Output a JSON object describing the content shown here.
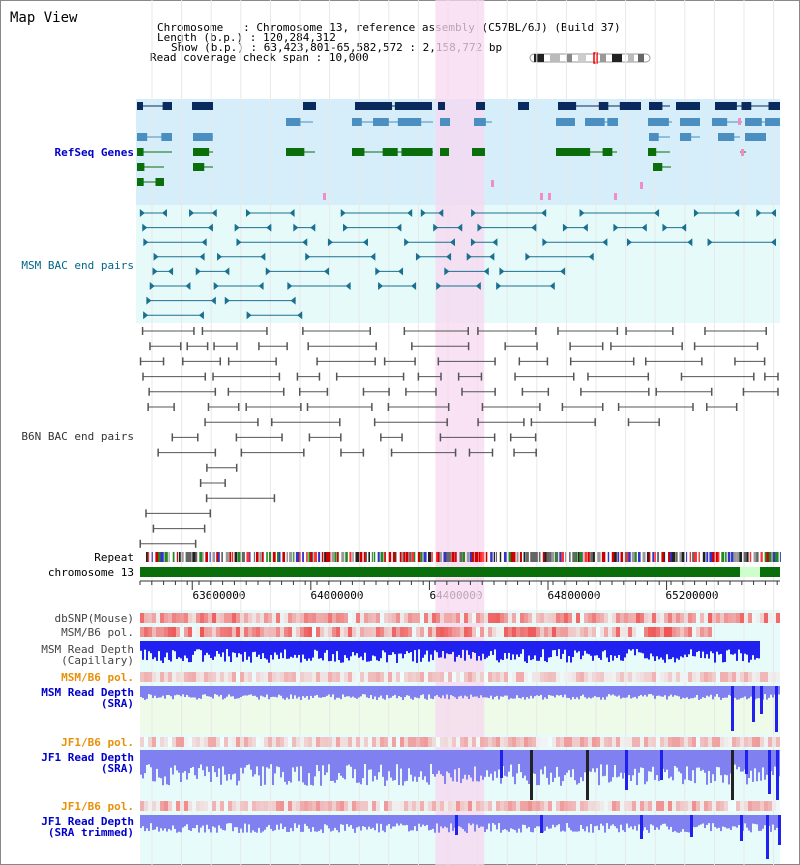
{
  "view": {
    "title": "Map View",
    "chromosome_label": "Chromosome",
    "chromosome_value": "Chromosome 13, reference assembly (C57BL/6J) (Build 37)",
    "length_label": "Length (b.p.)",
    "length_value": "120,284,312",
    "show_label": "Show (b.p.)",
    "show_value": "63,423,801-65,582,572 : 2,158,772 bp",
    "span_label": "Read coverage check span",
    "span_value": "10,000"
  },
  "tracks": {
    "refseq": "RefSeq Genes",
    "msm_bac": "MSM BAC end pairs",
    "b6n_bac": "B6N BAC end pairs",
    "repeat": "Repeat",
    "chromosome": "chromosome 13",
    "dbsnp": "dbSNP(Mouse)",
    "msm_b6_pol_1": "MSM/B6 pol.",
    "msm_depth_cap_1": "MSM Read Depth",
    "msm_depth_cap_2": "(Capillary)",
    "msm_b6_pol_2": "MSM/B6 pol.",
    "msm_depth_sra_1": "MSM Read Depth",
    "msm_depth_sra_2": "(SRA)",
    "jf1_b6_pol_1": "JF1/B6 pol.",
    "jf1_depth_sra_1": "JF1 Read Depth",
    "jf1_depth_sra_2": "(SRA)",
    "jf1_b6_pol_2": "JF1/B6 pol.",
    "jf1_depth_trim_1": "JF1 Read Depth",
    "jf1_depth_trim_2": "(SRA trimmed)"
  },
  "axis": {
    "ticks": [
      "63600000",
      "64000000",
      "64400000",
      "64800000",
      "65200000"
    ],
    "tick_values": [
      63600000,
      64000000,
      64400000,
      64800000,
      65200000
    ],
    "start": 63423801,
    "end": 65582572,
    "highlight_start": 64420000,
    "highlight_end": 64585000
  },
  "colors": {
    "refseq_bg": "#d6eefa",
    "bac_bg": "#e6fafa",
    "highlight": "#f7d8f0",
    "refseq_navy": "#0a2a5e",
    "refseq_blue": "#4a8fbf",
    "refseq_green": "#0a6e0a",
    "refseq_pink": "#f08cc8",
    "msm_bac": "#1a7090",
    "b6n_bac": "#555555",
    "chromosome": "#0a6e0a",
    "depth_blue": "#2020f0",
    "depth_light": "#8080f0",
    "snp_red": "#e84848",
    "pol_bg": "#e8ffe8"
  }
}
